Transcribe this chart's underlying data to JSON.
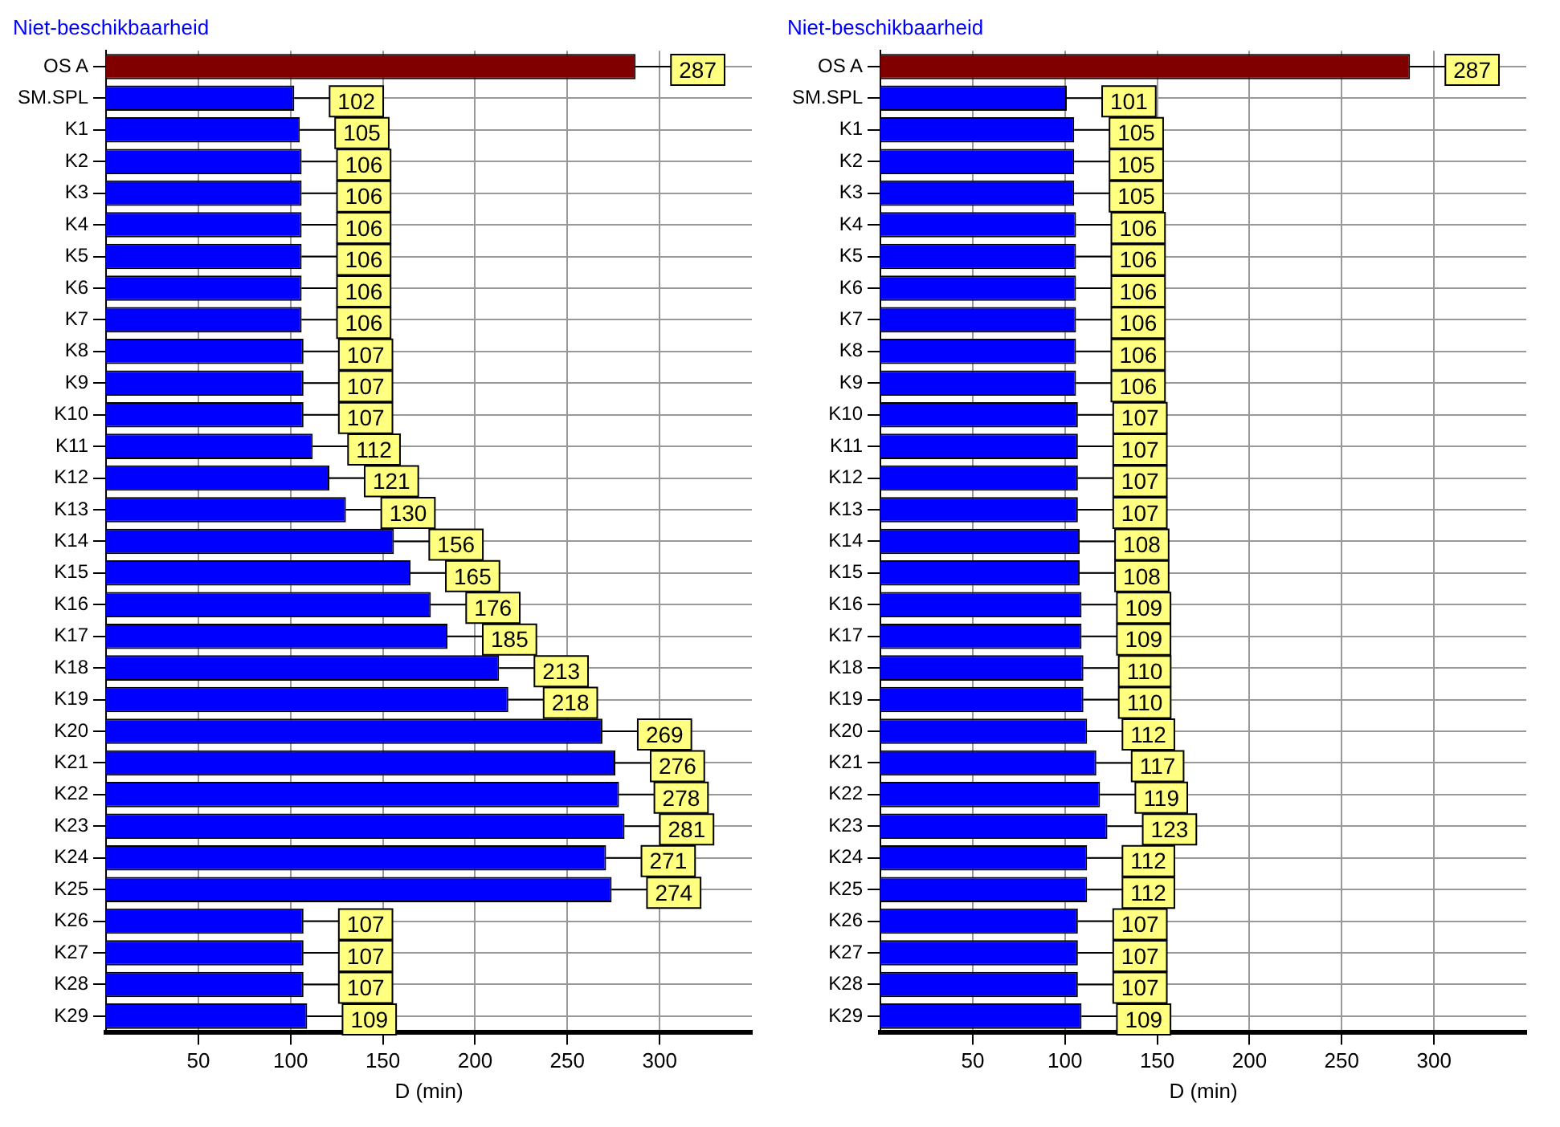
{
  "chart_data": [
    {
      "type": "bar",
      "orientation": "horizontal",
      "title": "Niet-beschikbaarheid",
      "xlabel": "D (min)",
      "categories": [
        "OS A",
        "SM.SPL",
        "K1",
        "K2",
        "K3",
        "K4",
        "K5",
        "K6",
        "K7",
        "K8",
        "K9",
        "K10",
        "K11",
        "K12",
        "K13",
        "K14",
        "K15",
        "K16",
        "K17",
        "K18",
        "K19",
        "K20",
        "K21",
        "K22",
        "K23",
        "K24",
        "K25",
        "K26",
        "K27",
        "K28",
        "K29"
      ],
      "values": [
        287,
        102,
        105,
        106,
        106,
        106,
        106,
        106,
        106,
        107,
        107,
        107,
        112,
        121,
        130,
        156,
        165,
        176,
        185,
        213,
        218,
        269,
        276,
        278,
        281,
        271,
        274,
        107,
        107,
        107,
        109
      ],
      "colors": [
        "#800000",
        "#0000ff",
        "#0000ff",
        "#0000ff",
        "#0000ff",
        "#0000ff",
        "#0000ff",
        "#0000ff",
        "#0000ff",
        "#0000ff",
        "#0000ff",
        "#0000ff",
        "#0000ff",
        "#0000ff",
        "#0000ff",
        "#0000ff",
        "#0000ff",
        "#0000ff",
        "#0000ff",
        "#0000ff",
        "#0000ff",
        "#0000ff",
        "#0000ff",
        "#0000ff",
        "#0000ff",
        "#0000ff",
        "#0000ff",
        "#0000ff",
        "#0000ff",
        "#0000ff",
        "#0000ff"
      ],
      "xlim": [
        0,
        350
      ],
      "xticks": [
        50,
        100,
        150,
        200,
        250,
        300
      ],
      "grid": true,
      "data_labels": true
    },
    {
      "type": "bar",
      "orientation": "horizontal",
      "title": "Niet-beschikbaarheid",
      "xlabel": "D (min)",
      "categories": [
        "OS A",
        "SM.SPL",
        "K1",
        "K2",
        "K3",
        "K4",
        "K5",
        "K6",
        "K7",
        "K8",
        "K9",
        "K10",
        "K11",
        "K12",
        "K13",
        "K14",
        "K15",
        "K16",
        "K17",
        "K18",
        "K19",
        "K20",
        "K21",
        "K22",
        "K23",
        "K24",
        "K25",
        "K26",
        "K27",
        "K28",
        "K29"
      ],
      "values": [
        287,
        101,
        105,
        105,
        105,
        106,
        106,
        106,
        106,
        106,
        106,
        107,
        107,
        107,
        107,
        108,
        108,
        109,
        109,
        110,
        110,
        112,
        117,
        119,
        123,
        112,
        112,
        107,
        107,
        107,
        109
      ],
      "colors": [
        "#800000",
        "#0000ff",
        "#0000ff",
        "#0000ff",
        "#0000ff",
        "#0000ff",
        "#0000ff",
        "#0000ff",
        "#0000ff",
        "#0000ff",
        "#0000ff",
        "#0000ff",
        "#0000ff",
        "#0000ff",
        "#0000ff",
        "#0000ff",
        "#0000ff",
        "#0000ff",
        "#0000ff",
        "#0000ff",
        "#0000ff",
        "#0000ff",
        "#0000ff",
        "#0000ff",
        "#0000ff",
        "#0000ff",
        "#0000ff",
        "#0000ff",
        "#0000ff",
        "#0000ff",
        "#0000ff"
      ],
      "xlim": [
        0,
        350
      ],
      "xticks": [
        50,
        100,
        150,
        200,
        250,
        300
      ],
      "grid": true,
      "data_labels": true
    }
  ]
}
